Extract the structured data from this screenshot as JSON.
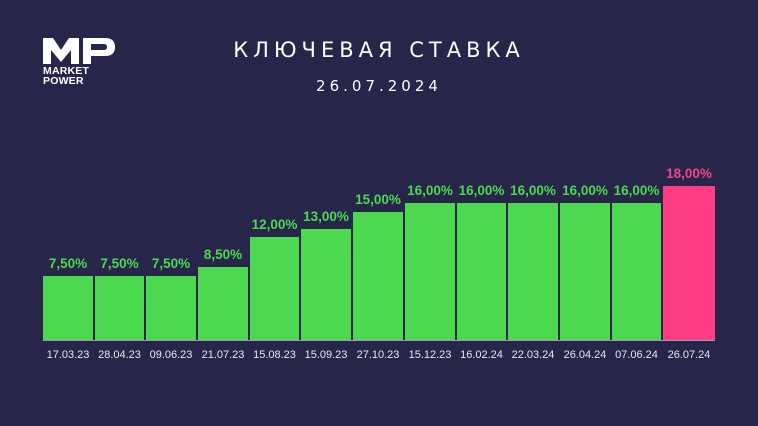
{
  "logo": {
    "mark": "MP",
    "line1": "MARKET",
    "line2": "POWER"
  },
  "header": {
    "title": "КЛЮЧЕВАЯ СТАВКА",
    "date": "26.07.2024"
  },
  "colors": {
    "background": "#27264a",
    "bar_default": "#4cd94f",
    "bar_highlight": "#ff3d85",
    "label_default": "#4cd94f",
    "label_highlight": "#f0458a"
  },
  "chart_data": {
    "type": "bar",
    "title": "КЛЮЧЕВАЯ СТАВКА",
    "subtitle": "26.07.2024",
    "xlabel": "",
    "ylabel": "",
    "ylim": [
      0,
      18
    ],
    "grid": false,
    "legend": null,
    "categories": [
      "17.03.23",
      "28.04.23",
      "09.06.23",
      "21.07.23",
      "15.08.23",
      "15.09.23",
      "27.10.23",
      "15.12.23",
      "16.02.24",
      "22.03.24",
      "26.04.24",
      "07.06.24",
      "26.07.24"
    ],
    "values": [
      7.5,
      7.5,
      7.5,
      8.5,
      12.0,
      13.0,
      15.0,
      16.0,
      16.0,
      16.0,
      16.0,
      16.0,
      18.0
    ],
    "labels": [
      "7,50%",
      "7,50%",
      "7,50%",
      "8,50%",
      "12,00%",
      "13,00%",
      "15,00%",
      "16,00%",
      "16,00%",
      "16,00%",
      "16,00%",
      "16,00%",
      "18,00%"
    ],
    "highlight_index": 12
  }
}
